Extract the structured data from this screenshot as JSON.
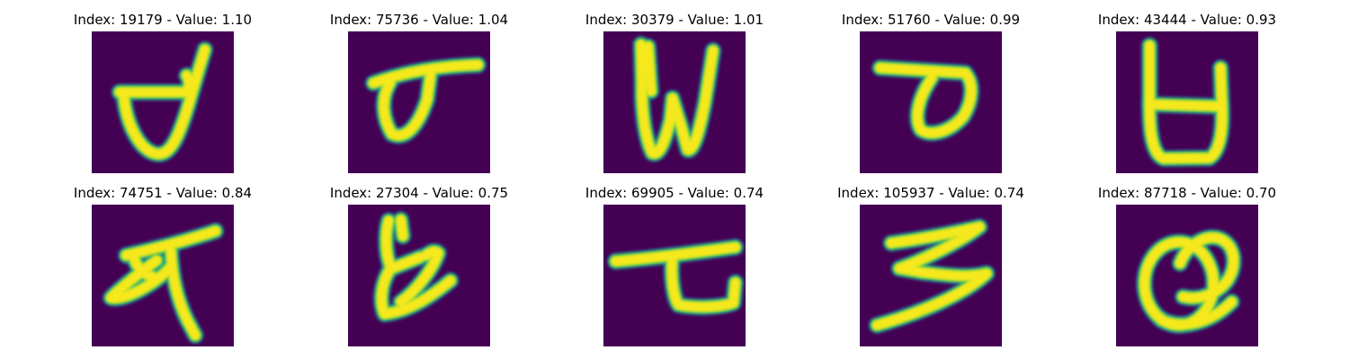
{
  "colors": {
    "background": "#440154",
    "stroke_core": "#f5e81f",
    "stroke_edge": "#29af7f",
    "stroke_mid": "#b5de2b",
    "stroke_dark": "#31688e"
  },
  "panels": [
    {
      "title": "Index: 19179 - Value: 1.10",
      "glyph": "tailed-u"
    },
    {
      "title": "Index: 75736 - Value: 1.04",
      "glyph": "loop-with-bar"
    },
    {
      "title": "Index: 30379 - Value: 1.01",
      "glyph": "w-shape"
    },
    {
      "title": "Index: 51760 - Value: 0.99",
      "glyph": "bar-with-loop"
    },
    {
      "title": "Index: 43444 - Value: 0.93",
      "glyph": "barred-u"
    },
    {
      "title": "Index: 74751 - Value: 0.84",
      "glyph": "looped-stroke"
    },
    {
      "title": "Index: 27304 - Value: 0.75",
      "glyph": "branch-shape"
    },
    {
      "title": "Index: 69905 - Value: 0.74",
      "glyph": "hooked-bar"
    },
    {
      "title": "Index: 105937 - Value: 0.74",
      "glyph": "zigzag"
    },
    {
      "title": "Index: 87718 - Value: 0.70",
      "glyph": "double-loop"
    }
  ]
}
